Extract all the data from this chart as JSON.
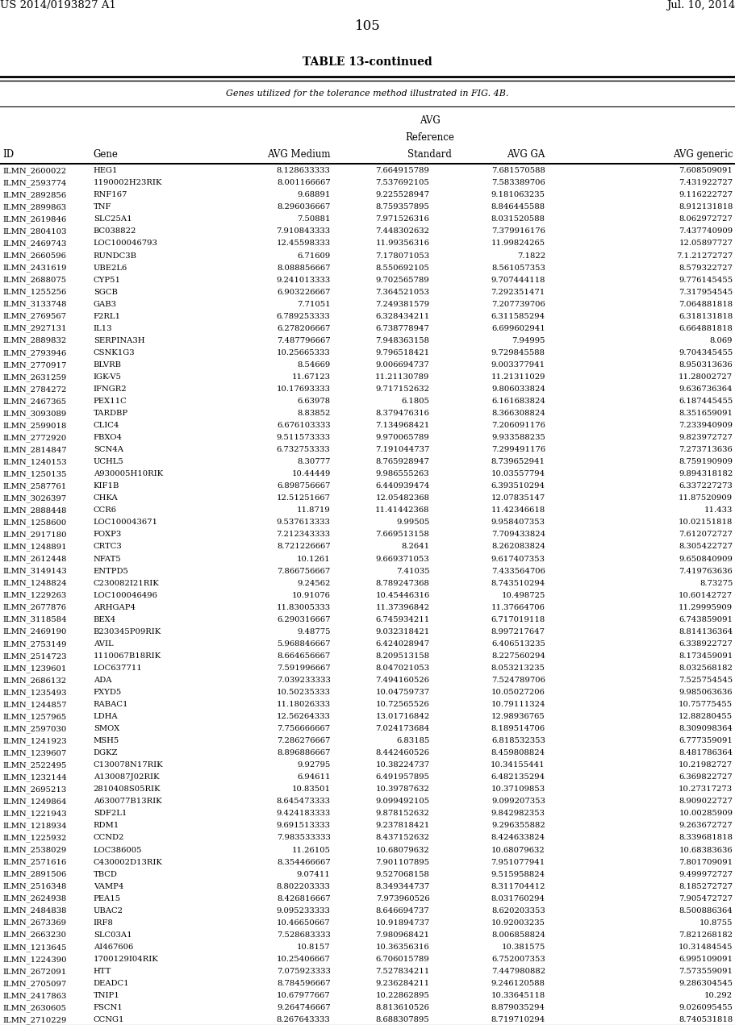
{
  "title": "TABLE 13-continued",
  "subtitle": "Genes utilized for the tolerance method illustrated in FIG. 4B.",
  "header_left": "US 2014/0193827 A1",
  "header_right": "Jul. 10, 2014",
  "page_number": "105",
  "rows": [
    [
      "ILMN_2600022",
      "HEG1",
      "8.128633333",
      "7.664915789",
      "7.681570588",
      "7.608509091"
    ],
    [
      "ILMN_2593774",
      "1190002H23RIK",
      "8.001166667",
      "7.537692105",
      "7.583389706",
      "7.431922727"
    ],
    [
      "ILMN_2892856",
      "RNF167",
      "9.68891",
      "9.225528947",
      "9.181063235",
      "9.116222727"
    ],
    [
      "ILMN_2899863",
      "TNF",
      "8.296036667",
      "8.759357895",
      "8.846445588",
      "8.912131818"
    ],
    [
      "ILMN_2619846",
      "SLC25A1",
      "7.50881",
      "7.971526316",
      "8.031520588",
      "8.062972727"
    ],
    [
      "ILMN_2804103",
      "BC038822",
      "7.910843333",
      "7.448302632",
      "7.379916176",
      "7.437740909"
    ],
    [
      "ILMN_2469743",
      "LOC100046793",
      "12.45598333",
      "11.99356316",
      "11.99824265",
      "12.05897727"
    ],
    [
      "ILMN_2660596",
      "RUNDC3B",
      "6.71609",
      "7.178071053",
      "7.1822",
      "7.1.21272727"
    ],
    [
      "ILMN_2431619",
      "UBE2L6",
      "8.088856667",
      "8.550692105",
      "8.561057353",
      "8.579322727"
    ],
    [
      "ILMN_2688075",
      "CYP51",
      "9.241013333",
      "9.702565789",
      "9.707444118",
      "9.776145455"
    ],
    [
      "ILMN_1255256",
      "SGCB",
      "6.903226667",
      "7.364521053",
      "7.292351471",
      "7.317954545"
    ],
    [
      "ILMN_3133748",
      "GAB3",
      "7.71051",
      "7.249381579",
      "7.207739706",
      "7.064881818"
    ],
    [
      "ILMN_2769567",
      "F2RL1",
      "6.789253333",
      "6.328434211",
      "6.311585294",
      "6.318131818"
    ],
    [
      "ILMN_2927131",
      "IL13",
      "6.278206667",
      "6.738778947",
      "6.699602941",
      "6.664881818"
    ],
    [
      "ILMN_2889832",
      "SERPINA3H",
      "7.487796667",
      "7.948363158",
      "7.94995",
      "8.069"
    ],
    [
      "ILMN_2793946",
      "CSNK1G3",
      "10.25665333",
      "9.796518421",
      "9.729845588",
      "9.704345455"
    ],
    [
      "ILMN_2770917",
      "BLVRB",
      "8.54669",
      "9.006694737",
      "9.003377941",
      "8.950313636"
    ],
    [
      "ILMN_2631259",
      "IGK-V5",
      "11.67123",
      "11.21130789",
      "11.21311029",
      "11.28002727"
    ],
    [
      "ILMN_2784272",
      "IFNGR2",
      "10.17693333",
      "9.717152632",
      "9.806033824",
      "9.636736364"
    ],
    [
      "ILMN_2467365",
      "PEX11C",
      "6.63978",
      "6.1805",
      "6.161683824",
      "6.187445455"
    ],
    [
      "ILMN_3093089",
      "TARDBP",
      "8.83852",
      "8.379476316",
      "8.366308824",
      "8.351659091"
    ],
    [
      "ILMN_2599018",
      "CLIC4",
      "6.676103333",
      "7.134968421",
      "7.206091176",
      "7.233940909"
    ],
    [
      "ILMN_2772920",
      "FBXO4",
      "9.511573333",
      "9.970065789",
      "9.933588235",
      "9.823972727"
    ],
    [
      "ILMN_2814847",
      "SCN4A",
      "6.732753333",
      "7.191044737",
      "7.299491176",
      "7.273713636"
    ],
    [
      "ILMN_1240153",
      "UCHL5",
      "8.30777",
      "8.765928947",
      "8.739652941",
      "8.759190909"
    ],
    [
      "ILMN_1250135",
      "A930005H10RIK",
      "10.44449",
      "9.986555263",
      "10.03557794",
      "9.894318182"
    ],
    [
      "ILMN_2587761",
      "KIF1B",
      "6.898756667",
      "6.440939474",
      "6.393510294",
      "6.337227273"
    ],
    [
      "ILMN_3026397",
      "CHKA",
      "12.51251667",
      "12.05482368",
      "12.07835147",
      "11.87520909"
    ],
    [
      "ILMN_2888448",
      "CCR6",
      "11.8719",
      "11.41442368",
      "11.42346618",
      "11.433"
    ],
    [
      "ILMN_1258600",
      "LOC100043671",
      "9.537613333",
      "9.99505",
      "9.958407353",
      "10.02151818"
    ],
    [
      "ILMN_2917180",
      "FOXP3",
      "7.212343333",
      "7.669513158",
      "7.709433824",
      "7.612072727"
    ],
    [
      "ILMN_1248891",
      "CRTC3",
      "8.721226667",
      "8.2641",
      "8.262083824",
      "8.305422727"
    ],
    [
      "ILMN_2612448",
      "NFAT5",
      "10.1261",
      "9.669371053",
      "9.617407353",
      "9.650840909"
    ],
    [
      "ILMN_3149143",
      "ENTPD5",
      "7.866756667",
      "7.41035",
      "7.433564706",
      "7.419763636"
    ],
    [
      "ILMN_1248824",
      "C230082I21RIK",
      "9.24562",
      "8.789247368",
      "8.743510294",
      "8.73275"
    ],
    [
      "ILMN_1229263",
      "LOC100046496",
      "10.91076",
      "10.45446316",
      "10.498725",
      "10.60142727"
    ],
    [
      "ILMN_2677876",
      "ARHGAP4",
      "11.83005333",
      "11.37396842",
      "11.37664706",
      "11.29995909"
    ],
    [
      "ILMN_3118584",
      "BEX4",
      "6.290316667",
      "6.745934211",
      "6.717019118",
      "6.743859091"
    ],
    [
      "ILMN_2469190",
      "B230345P09RIK",
      "9.48775",
      "9.032318421",
      "8.997217647",
      "8.814136364"
    ],
    [
      "ILMN_2753149",
      "AVIL",
      "5.968846667",
      "6.424028947",
      "6.406513235",
      "6.338922727"
    ],
    [
      "ILMN_2514723",
      "1110067B18RIK",
      "8.664656667",
      "8.209513158",
      "8.227560294",
      "8.173459091"
    ],
    [
      "ILMN_1239601",
      "LOC637711",
      "7.591996667",
      "8.047021053",
      "8.053213235",
      "8.032568182"
    ],
    [
      "ILMN_2686132",
      "ADA",
      "7.039233333",
      "7.494160526",
      "7.524789706",
      "7.525754545"
    ],
    [
      "ILMN_1235493",
      "FXYD5",
      "10.50235333",
      "10.04759737",
      "10.05027206",
      "9.985063636"
    ],
    [
      "ILMN_1244857",
      "RABAC1",
      "11.18026333",
      "10.72565526",
      "10.79111324",
      "10.75775455"
    ],
    [
      "ILMN_1257965",
      "LDHA",
      "12.56264333",
      "13.01716842",
      "12.98936765",
      "12.88280455"
    ],
    [
      "ILMN_2597030",
      "SMOX",
      "7.756666667",
      "7.024173684",
      "8.189514706",
      "8.309098364"
    ],
    [
      "ILMN_1241923",
      "MSH5",
      "7.286276667",
      "6.83185",
      "6.818532353",
      "6.777359091"
    ],
    [
      "ILMN_1239607",
      "DGKZ",
      "8.896886667",
      "8.442460526",
      "8.459808824",
      "8.481786364"
    ],
    [
      "ILMN_2522495",
      "C130078N17RIK",
      "9.92795",
      "10.38224737",
      "10.34155441",
      "10.21982727"
    ],
    [
      "ILMN_1232144",
      "A130087J02RIK",
      "6.94611",
      "6.491957895",
      "6.482135294",
      "6.369822727"
    ],
    [
      "ILMN_2695213",
      "2810408S05RIK",
      "10.83501",
      "10.39787632",
      "10.37109853",
      "10.27317273"
    ],
    [
      "ILMN_1249864",
      "A630077B13RIK",
      "8.645473333",
      "9.099492105",
      "9.099207353",
      "8.909022727"
    ],
    [
      "ILMN_1221943",
      "SDF2L1",
      "9.424183333",
      "9.878152632",
      "9.842982353",
      "10.00285909"
    ],
    [
      "ILMN_1218934",
      "RDM1",
      "9.691513333",
      "9.237818421",
      "9.296355882",
      "9.263672727"
    ],
    [
      "ILMN_1225932",
      "CCND2",
      "7.983533333",
      "8.437152632",
      "8.424633824",
      "8.339681818"
    ],
    [
      "ILMN_2538029",
      "LOC386005",
      "11.26105",
      "10.68079632",
      "10.68079632",
      "10.68383636"
    ],
    [
      "ILMN_2571616",
      "C430002D13RIK",
      "8.354466667",
      "7.901107895",
      "7.951077941",
      "7.801709091"
    ],
    [
      "ILMN_2891506",
      "TBCD",
      "9.07411",
      "9.527068158",
      "9.515958824",
      "9.499972727"
    ],
    [
      "ILMN_2516348",
      "VAMP4",
      "8.802203333",
      "8.349344737",
      "8.311704412",
      "8.185272727"
    ],
    [
      "ILMN_2624938",
      "PEA15",
      "8.426816667",
      "7.973960526",
      "8.031760294",
      "7.905472727"
    ],
    [
      "ILMN_2484838",
      "UBAC2",
      "9.095233333",
      "8.646694737",
      "8.620203353",
      "8.500886364"
    ],
    [
      "ILMN_2673369",
      "IRF8",
      "10.46650667",
      "10.91894737",
      "10.92003235",
      "10.8755"
    ],
    [
      "ILMN_2663230",
      "SLC03A1",
      "7.528683333",
      "7.980968421",
      "8.006858824",
      "7.821268182"
    ],
    [
      "ILMN_1213645",
      "AI467606",
      "10.8157",
      "10.36356316",
      "10.381575",
      "10.31484545"
    ],
    [
      "ILMN_1224390",
      "1700129I04RIK",
      "10.25406667",
      "6.706015789",
      "6.752007353",
      "6.995109091"
    ],
    [
      "ILMN_2672091",
      "HTT",
      "7.075923333",
      "7.527834211",
      "7.447980882",
      "7.573559091"
    ],
    [
      "ILMN_2705097",
      "DEADC1",
      "8.784596667",
      "9.236284211",
      "9.246120588",
      "9.286304545"
    ],
    [
      "ILMN_2417863",
      "TNIP1",
      "10.67977667",
      "10.22862895",
      "10.33645118",
      "10.292"
    ],
    [
      "ILMN_2630605",
      "FSCN1",
      "9.264746667",
      "8.813610526",
      "8.879035294",
      "9.026095455"
    ],
    [
      "ILMN_2710229",
      "CCNG1",
      "8.267643333",
      "8.688307895",
      "8.719710294",
      "8.740531818"
    ]
  ]
}
